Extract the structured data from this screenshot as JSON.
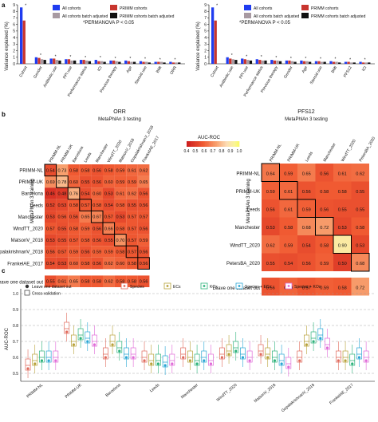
{
  "figure": {
    "panel_a_left": {
      "panel_letter": "a",
      "ylabel": "Variance explained (%)",
      "yticks": [
        "0",
        "1",
        "2",
        "3",
        "4",
        "5",
        "6",
        "7",
        "8",
        "9"
      ],
      "legend": [
        "All cohorts",
        "PRIMM cohorts",
        "All cohorts batch adjusted",
        "PRIMM cohorts batch adjusted"
      ],
      "note": "*PERMANOVA P < 0.05",
      "categories": [
        "Cohort",
        "Gender",
        "Antibiotic use",
        "PPI use",
        "Performance status",
        "ICI",
        "Previous therapy",
        "Age",
        "Steroid use",
        "BMI",
        "ORR"
      ]
    },
    "panel_a_right": {
      "ylabel": "Variance explained (%)",
      "yticks": [
        "0",
        "1",
        "2",
        "3",
        "4",
        "5",
        "6",
        "7",
        "8",
        "9"
      ],
      "legend": [
        "All cohorts",
        "PRIMM cohorts",
        "All cohorts batch adjusted",
        "PRIMM cohorts batch adjusted"
      ],
      "note": "*PERMANOVA P < 0.05",
      "categories": [
        "Cohort",
        "Antibiotic use",
        "PPI use",
        "Performance status",
        "Previous therapy",
        "Gender",
        "Age",
        "Steroid use",
        "BMI",
        "PFS12",
        "ICI"
      ]
    },
    "panel_b": {
      "panel_letter": "b",
      "orr_title": "ORR",
      "orr_subtitle": "MetaPhlAn 3 testing",
      "pfs_title": "PFS12",
      "pfs_subtitle": "MetaPhlAn 3 testing",
      "ylabel": "MetaPhlAn 3 training",
      "colorbar_title": "AUC-ROC",
      "colorbar_ticks": [
        "0.4",
        "0.5",
        "0.6",
        "0.7",
        "0.8",
        "0.9",
        "1.0"
      ],
      "loo_label": "Leave one dataset out",
      "orr_datasets": [
        "PRIMM-NL",
        "PRIMM-UK",
        "Barcelona",
        "Leeds",
        "Manchester",
        "WindTT_2020",
        "MatsonV_2018",
        "GopalakrishnanV_2018",
        "FrankelAE_2017"
      ],
      "orr_matrix": [
        [
          "0.54",
          "0.73",
          "0.58",
          "0.58",
          "0.56",
          "0.58",
          "0.59",
          "0.61",
          "0.62"
        ],
        [
          "0.69",
          "0.78",
          "0.60",
          "0.55",
          "0.56",
          "0.60",
          "0.59",
          "0.59",
          "0.65"
        ],
        [
          "0.46",
          "0.48",
          "0.76",
          "0.54",
          "0.60",
          "0.53",
          "0.61",
          "0.62",
          "0.56"
        ],
        [
          "0.52",
          "0.53",
          "0.58",
          "0.57",
          "0.58",
          "0.54",
          "0.58",
          "0.55",
          "0.56"
        ],
        [
          "0.53",
          "0.56",
          "0.56",
          "0.65",
          "0.67",
          "0.57",
          "0.53",
          "0.57",
          "0.57"
        ],
        [
          "0.57",
          "0.55",
          "0.58",
          "0.59",
          "0.56",
          "0.66",
          "0.58",
          "0.57",
          "0.56"
        ],
        [
          "0.53",
          "0.55",
          "0.57",
          "0.58",
          "0.56",
          "0.55",
          "0.70",
          "0.57",
          "0.59"
        ],
        [
          "0.56",
          "0.57",
          "0.59",
          "0.56",
          "0.59",
          "0.59",
          "0.58",
          "0.57",
          "0.56"
        ],
        [
          "0.54",
          "0.53",
          "0.60",
          "0.58",
          "0.56",
          "0.62",
          "0.60",
          "0.58",
          "0.56"
        ]
      ],
      "orr_loo": [
        "0.55",
        "0.61",
        "0.65",
        "0.58",
        "0.58",
        "0.62",
        "0.58",
        "0.58",
        "0.56"
      ],
      "pfs_datasets": [
        "PRIMM-NL",
        "PRIMM-UK",
        "Leeds",
        "Manchester",
        "WindTT_2020",
        "PetersBA_2020"
      ],
      "pfs_matrix": [
        [
          "0.64",
          "0.59",
          "0.65",
          "0.56",
          "0.61",
          "0.62"
        ],
        [
          "0.59",
          "0.61",
          "0.56",
          "0.58",
          "0.58",
          "0.55"
        ],
        [
          "0.56",
          "0.61",
          "0.59",
          "0.56",
          "0.55",
          "0.55"
        ],
        [
          "0.53",
          "0.58",
          "0.68",
          "0.72",
          "0.53",
          "0.58"
        ],
        [
          "0.62",
          "0.59",
          "0.54",
          "0.58",
          "0.90",
          "0.53"
        ],
        [
          "0.55",
          "0.54",
          "0.56",
          "0.59",
          "0.50",
          "0.68"
        ]
      ],
      "pfs_loo": [
        "0.56",
        "0.60",
        "0.57",
        "0.59",
        "0.58",
        "0.72"
      ]
    },
    "panel_c": {
      "panel_letter": "c",
      "ylabel": "AUC-ROC",
      "yticks": [
        "0.5",
        "0.6",
        "0.7",
        "0.8",
        "0.9",
        "1.0"
      ],
      "legend_markers": [
        "Leave one dataset out",
        "Cross-validation"
      ],
      "legend_features": [
        "Species",
        "ECs",
        "KOs",
        "Species + ECs",
        "Species + KOs"
      ],
      "feature_colors": [
        "#e06a5c",
        "#b8a23a",
        "#2eb37c",
        "#2aa6d4",
        "#e06ad8"
      ],
      "datasets": [
        "PRIMM-NL",
        "PRIMM-UK",
        "Barcelona",
        "Leeds",
        "Manchester",
        "WindTT_2020",
        "MatsonV_2018",
        "GopalakrishnanV_2018",
        "FrankelAE_2017"
      ]
    }
  },
  "chart_data": [
    {
      "type": "bar",
      "title": "",
      "ylabel": "Variance explained (%)",
      "ylim": [
        0,
        9
      ],
      "categories": [
        "Cohort",
        "Gender",
        "Antibiotic use",
        "PPI use",
        "Performance status",
        "ICI",
        "Previous therapy",
        "Age",
        "Steroid use",
        "BMI",
        "ORR"
      ],
      "series": [
        {
          "name": "All cohorts",
          "values": [
            8.6,
            1.0,
            0.8,
            0.7,
            0.6,
            0.6,
            0.5,
            0.5,
            0.4,
            0.3,
            0.3
          ]
        },
        {
          "name": "PRIMM cohorts",
          "values": [
            6.6,
            0.9,
            0.8,
            0.7,
            0.6,
            0.4,
            0.5,
            0.4,
            0.3,
            0.3,
            0.2
          ]
        },
        {
          "name": "All cohorts batch adjusted",
          "values": [
            0.0,
            0.7,
            0.6,
            0.5,
            0.5,
            0.4,
            0.4,
            0.3,
            0.3,
            0.3,
            0.2
          ]
        },
        {
          "name": "PRIMM cohorts batch adjusted",
          "values": [
            0.0,
            0.6,
            0.5,
            0.5,
            0.4,
            0.3,
            0.3,
            0.3,
            0.2,
            0.2,
            0.2
          ]
        }
      ]
    },
    {
      "type": "bar",
      "title": "",
      "ylabel": "Variance explained (%)",
      "ylim": [
        0,
        9
      ],
      "categories": [
        "Cohort",
        "Antibiotic use",
        "PPI use",
        "Performance status",
        "Previous therapy",
        "Gender",
        "Age",
        "Steroid use",
        "BMI",
        "PFS12",
        "ICI"
      ],
      "series": [
        {
          "name": "All cohorts",
          "values": [
            8.6,
            1.0,
            0.8,
            0.7,
            0.6,
            0.5,
            0.5,
            0.4,
            0.4,
            0.3,
            0.3
          ]
        },
        {
          "name": "PRIMM cohorts",
          "values": [
            6.6,
            0.8,
            0.7,
            0.6,
            0.5,
            0.5,
            0.4,
            0.4,
            0.3,
            0.3,
            0.2
          ]
        },
        {
          "name": "All cohorts batch adjusted",
          "values": [
            0.0,
            0.7,
            0.6,
            0.5,
            0.5,
            0.4,
            0.4,
            0.3,
            0.3,
            0.2,
            0.2
          ]
        },
        {
          "name": "PRIMM cohorts batch adjusted",
          "values": [
            0.0,
            0.6,
            0.5,
            0.5,
            0.4,
            0.3,
            0.3,
            0.3,
            0.2,
            0.2,
            0.2
          ]
        }
      ]
    },
    {
      "type": "heatmap",
      "title": "ORR",
      "subtitle": "MetaPhlAn 3 testing",
      "ylabel": "MetaPhlAn 3 training",
      "colorbar": {
        "title": "AUC-ROC",
        "range": [
          0.4,
          1.0
        ]
      }
    },
    {
      "type": "heatmap",
      "title": "PFS12",
      "subtitle": "MetaPhlAn 3 testing",
      "ylabel": "MetaPhlAn 3 training"
    },
    {
      "type": "box",
      "ylabel": "AUC-ROC",
      "ylim": [
        0.45,
        1.0
      ],
      "categories": [
        "PRIMM-NL",
        "PRIMM-UK",
        "Barcelona",
        "Leeds",
        "Manchester",
        "WindTT_2020",
        "MatsonV_2018",
        "GopalakrishnanV_2018",
        "FrankelAE_2017"
      ],
      "series": [
        {
          "name": "Species",
          "medians": [
            0.55,
            0.78,
            0.62,
            0.6,
            0.62,
            0.62,
            0.64,
            0.6,
            0.6
          ]
        },
        {
          "name": "ECs",
          "medians": [
            0.58,
            0.7,
            0.7,
            0.58,
            0.6,
            0.64,
            0.62,
            0.7,
            0.6
          ]
        },
        {
          "name": "KOs",
          "medians": [
            0.6,
            0.74,
            0.66,
            0.58,
            0.58,
            0.66,
            0.6,
            0.72,
            0.58
          ]
        },
        {
          "name": "Species + ECs",
          "medians": [
            0.6,
            0.72,
            0.62,
            0.57,
            0.6,
            0.62,
            0.58,
            0.74,
            0.62
          ]
        },
        {
          "name": "Species + KOs",
          "medians": [
            0.6,
            0.7,
            0.62,
            0.58,
            0.58,
            0.6,
            0.56,
            0.68,
            0.6
          ]
        }
      ]
    }
  ]
}
